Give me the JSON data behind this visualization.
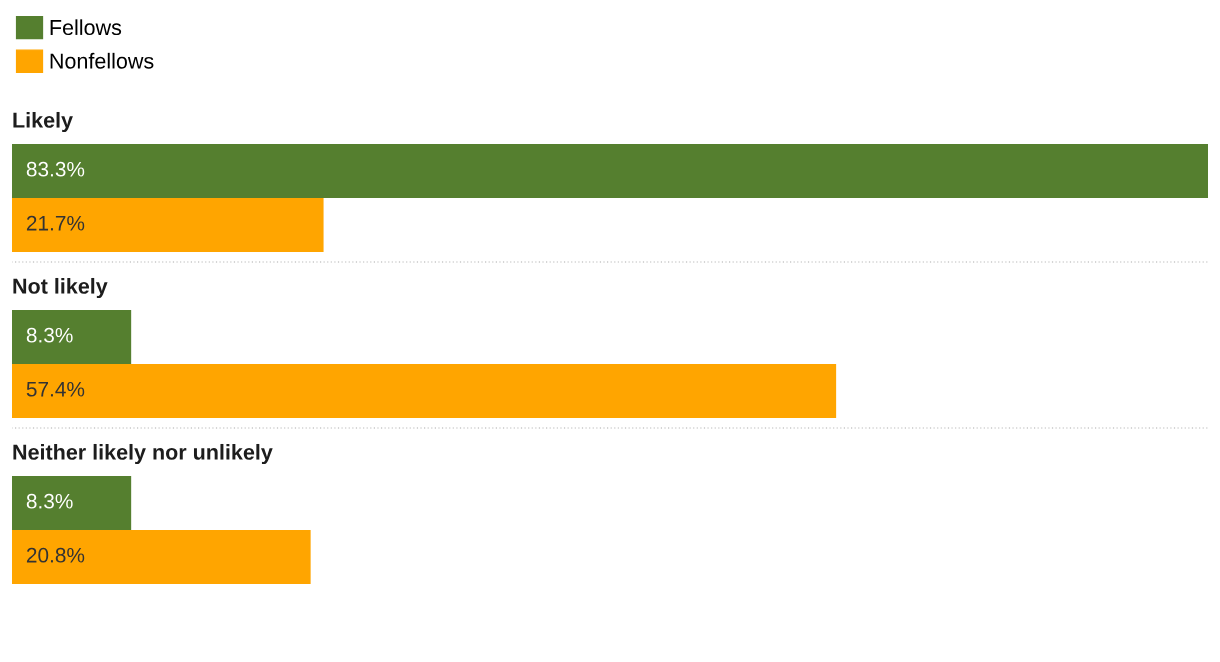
{
  "chart_data": {
    "type": "bar",
    "orientation": "horizontal",
    "categories": [
      "Likely",
      "Not likely",
      "Neither likely nor unlikely"
    ],
    "series": [
      {
        "name": "Fellows",
        "color": "#557f2f",
        "values": [
          83.3,
          8.3,
          8.3
        ],
        "value_labels": [
          "83.3%",
          "8.3%",
          "8.3%"
        ]
      },
      {
        "name": "Nonfellows",
        "color": "#ffa500",
        "values": [
          21.7,
          57.4,
          20.8
        ],
        "value_labels": [
          "21.7%",
          "57.4%",
          "20.8%"
        ]
      }
    ],
    "legend": "top left"
  }
}
